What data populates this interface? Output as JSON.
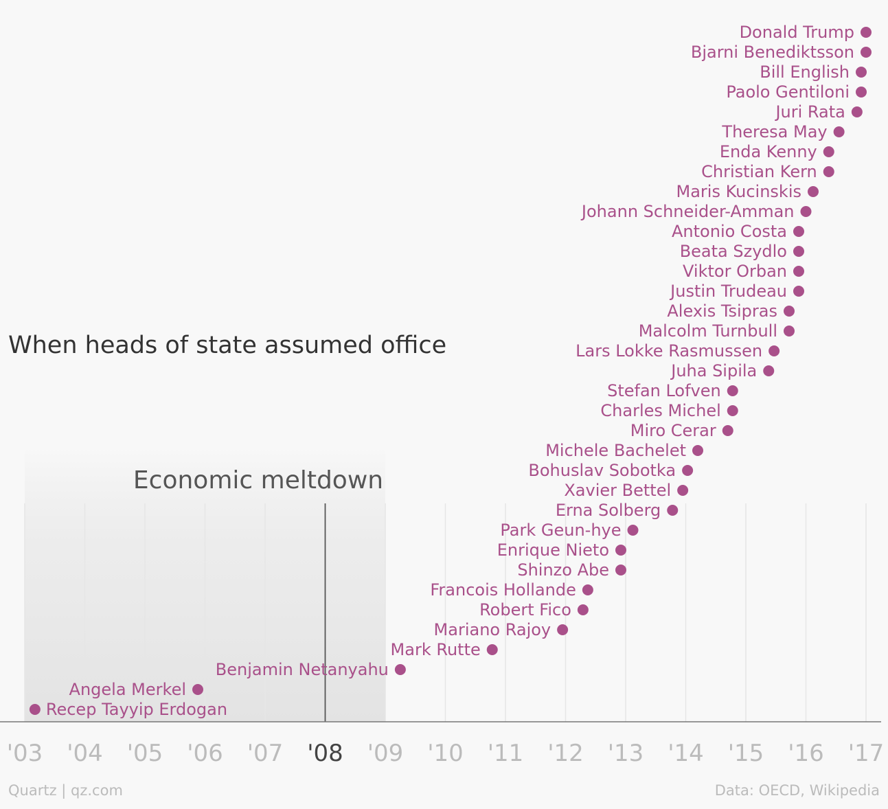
{
  "chart_data": {
    "type": "scatter",
    "title": "When heads of state assumed office",
    "xlabel": "",
    "ylabel": "",
    "xlim": [
      2003,
      2017
    ],
    "x_ticks": [
      "'03",
      "'04",
      "'05",
      "'06",
      "'07",
      "'08",
      "'09",
      "'10",
      "'11",
      "'12",
      "'13",
      "'14",
      "'15",
      "'16",
      "'17"
    ],
    "highlight_tick": "'08",
    "grid": "vertical",
    "shaded_region": {
      "label": "Economic meltdown",
      "x_start": 2003.0,
      "x_end": 2009.0,
      "marker_x": 2008.0
    },
    "points": [
      {
        "name": "Donald Trump",
        "x": 2017.0
      },
      {
        "name": "Bjarni Benediktsson",
        "x": 2017.0
      },
      {
        "name": "Bill English",
        "x": 2016.92
      },
      {
        "name": "Paolo Gentiloni",
        "x": 2016.92
      },
      {
        "name": "Juri Rata",
        "x": 2016.85
      },
      {
        "name": "Theresa May",
        "x": 2016.55
      },
      {
        "name": "Enda Kenny",
        "x": 2016.38
      },
      {
        "name": "Christian Kern",
        "x": 2016.38
      },
      {
        "name": "Maris Kucinskis",
        "x": 2016.12
      },
      {
        "name": "Johann Schneider-Amman",
        "x": 2016.0
      },
      {
        "name": "Antonio Costa",
        "x": 2015.88
      },
      {
        "name": "Beata Szydlo",
        "x": 2015.88
      },
      {
        "name": "Viktor Orban",
        "x": 2015.88
      },
      {
        "name": "Justin Trudeau",
        "x": 2015.88
      },
      {
        "name": "Alexis Tsipras",
        "x": 2015.72
      },
      {
        "name": "Malcolm Turnbull",
        "x": 2015.72
      },
      {
        "name": "Lars Lokke Rasmussen",
        "x": 2015.47
      },
      {
        "name": "Juha Sipila",
        "x": 2015.38
      },
      {
        "name": "Stefan Lofven",
        "x": 2014.78
      },
      {
        "name": "Charles Michel",
        "x": 2014.78
      },
      {
        "name": "Miro Cerar",
        "x": 2014.7
      },
      {
        "name": "Michele Bachelet",
        "x": 2014.2
      },
      {
        "name": "Bohuslav Sobotka",
        "x": 2014.03
      },
      {
        "name": "Xavier Bettel",
        "x": 2013.95
      },
      {
        "name": "Erna Solberg",
        "x": 2013.78
      },
      {
        "name": "Park Geun-hye",
        "x": 2013.12
      },
      {
        "name": "Enrique Nieto",
        "x": 2012.92
      },
      {
        "name": "Shinzo Abe",
        "x": 2012.92
      },
      {
        "name": "Francois Hollande",
        "x": 2012.37
      },
      {
        "name": "Robert Fico",
        "x": 2012.29
      },
      {
        "name": "Mariano Rajoy",
        "x": 2011.95
      },
      {
        "name": "Mark Rutte",
        "x": 2010.78
      },
      {
        "name": "Benjamin Netanyahu",
        "x": 2009.25
      },
      {
        "name": "Angela Merkel",
        "x": 2005.88
      },
      {
        "name": "Recep Tayyip Erdogan",
        "x": 2003.17
      }
    ],
    "colors": {
      "point": "#a9508a",
      "label": "#a9508a",
      "title": "#333333",
      "tick": "#bbbbbb",
      "tick_highlight": "#444444",
      "grid": "#e6e6e6",
      "axis": "#777777",
      "region_text": "#555555",
      "footer": "#bbbbbb"
    }
  },
  "footer": {
    "source_left": "Quartz | qz.com",
    "source_right": "Data: OECD, Wikipedia"
  }
}
